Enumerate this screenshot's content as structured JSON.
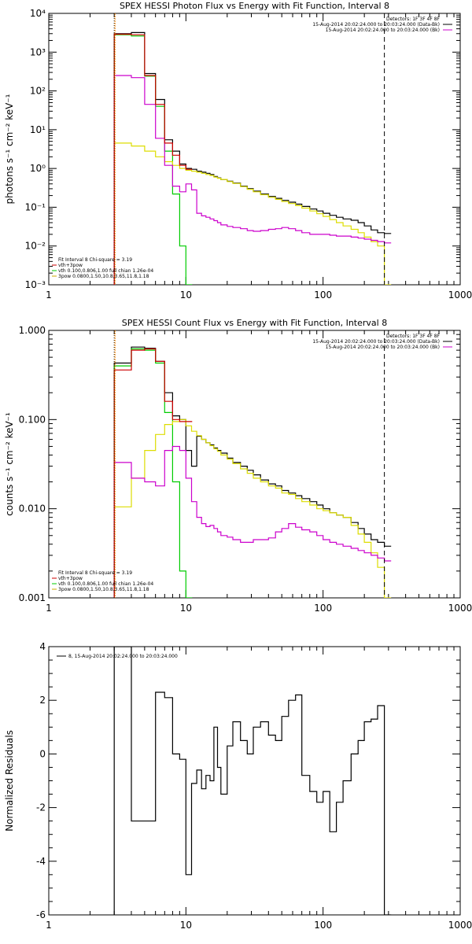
{
  "chart_data": [
    {
      "type": "line",
      "step": true,
      "title": "SPEX HESSI Photon Flux vs Energy with Fit Function, Interval 8",
      "ylabel": "photons s⁻¹ cm⁻² keV⁻¹",
      "xscale": "log",
      "yscale": "log",
      "xlim": [
        1,
        1000
      ],
      "ylim": [
        0.001,
        10000
      ],
      "xtick_labels": [
        "1",
        "10",
        "100",
        "1000"
      ],
      "ytick_labels": [
        "10⁻³",
        "10⁻²",
        "10⁻¹",
        "10⁰",
        "10¹",
        "10²",
        "10³",
        "10⁴"
      ],
      "top_right_legend": [
        {
          "text": "Detectors: 1F 3F 4F 8F",
          "color": "#000000"
        },
        {
          "text": "15-Aug-2014 20:02:24.000 to 20:03:24.000 (Data-Bk)",
          "color": "#000000"
        },
        {
          "text": "15-Aug-2014 20:02:24.000 to 20:03:24.000 (Bk)",
          "color": "#cc00cc"
        }
      ],
      "bottom_left_legend": [
        {
          "text": "Fit Interval 8   Chi-square = 3.19",
          "color": "#000000"
        },
        {
          "text": "vth+3pow",
          "color": "#cc0000"
        },
        {
          "text": "vth 0.100,0.806,1.00  full chian 1.26e-04",
          "color": "#00cc00"
        },
        {
          "text": "3pow 0.0800,1.50,10.8,3.65,11.8,1.18",
          "color": "#ccaa00"
        }
      ],
      "vlines": [
        {
          "x": 3,
          "style": "dotted",
          "color": "#000000"
        },
        {
          "x": 3,
          "style": "solid",
          "color": "#ff8800"
        },
        {
          "x": 280,
          "style": "dashed",
          "color": "#000000"
        }
      ],
      "series": [
        {
          "color": "#000000",
          "x": [
            3,
            4,
            5,
            6,
            7,
            8,
            9,
            10,
            11,
            12,
            13,
            14,
            15,
            16,
            17,
            18,
            20,
            22,
            25,
            28,
            31,
            35,
            40,
            45,
            50,
            56,
            63,
            70,
            80,
            90,
            100,
            112,
            125,
            140,
            160,
            180,
            200,
            224,
            250,
            280
          ],
          "y": [
            3000,
            3200,
            280,
            60,
            5.5,
            2.8,
            1.3,
            1.0,
            0.95,
            0.85,
            0.8,
            0.75,
            0.7,
            0.62,
            0.57,
            0.52,
            0.47,
            0.42,
            0.35,
            0.3,
            0.26,
            0.22,
            0.19,
            0.17,
            0.15,
            0.135,
            0.12,
            0.105,
            0.09,
            0.08,
            0.07,
            0.062,
            0.055,
            0.05,
            0.046,
            0.04,
            0.033,
            0.026,
            0.022,
            0.021
          ]
        },
        {
          "color": "#00cc00",
          "x": [
            3,
            4,
            5,
            6,
            7,
            8,
            9,
            10
          ],
          "y": [
            2800,
            2600,
            240,
            40,
            2.8,
            0.22,
            0.01,
            0.001
          ]
        },
        {
          "color": "#dddd00",
          "x": [
            3,
            4,
            5,
            6,
            7,
            8,
            9,
            10,
            11,
            12,
            13,
            14,
            15,
            16,
            17,
            18,
            20,
            22,
            25,
            28,
            31,
            35,
            40,
            45,
            50,
            56,
            63,
            70,
            80,
            90,
            100,
            112,
            125,
            140,
            160,
            180,
            200,
            224,
            250,
            280
          ],
          "y": [
            4.5,
            3.8,
            2.8,
            2.0,
            1.5,
            1.2,
            1.0,
            0.9,
            0.85,
            0.8,
            0.75,
            0.7,
            0.66,
            0.6,
            0.56,
            0.52,
            0.46,
            0.41,
            0.34,
            0.29,
            0.25,
            0.21,
            0.18,
            0.16,
            0.14,
            0.125,
            0.11,
            0.095,
            0.08,
            0.068,
            0.058,
            0.048,
            0.04,
            0.033,
            0.027,
            0.022,
            0.017,
            0.013,
            0.01,
            0.001
          ]
        },
        {
          "color": "#cc00cc",
          "x": [
            3,
            4,
            5,
            6,
            7,
            8,
            9,
            10,
            11,
            12,
            13,
            14,
            15,
            16,
            17,
            18,
            20,
            22,
            25,
            28,
            31,
            35,
            40,
            45,
            50,
            56,
            63,
            70,
            80,
            90,
            100,
            112,
            125,
            140,
            160,
            180,
            200,
            224,
            250,
            280
          ],
          "y": [
            250,
            220,
            45,
            6.0,
            1.2,
            0.35,
            0.25,
            0.4,
            0.28,
            0.07,
            0.06,
            0.055,
            0.05,
            0.045,
            0.04,
            0.035,
            0.032,
            0.03,
            0.028,
            0.025,
            0.024,
            0.025,
            0.027,
            0.028,
            0.03,
            0.028,
            0.025,
            0.022,
            0.02,
            0.02,
            0.02,
            0.019,
            0.018,
            0.018,
            0.017,
            0.016,
            0.015,
            0.014,
            0.013,
            0.012
          ]
        },
        {
          "color": "#cc0000",
          "x": [
            3,
            4,
            5,
            6,
            7,
            8,
            9,
            10
          ],
          "y": [
            2900,
            2800,
            250,
            45,
            4.5,
            2.2,
            1.2,
            0.95
          ]
        }
      ]
    },
    {
      "type": "line",
      "step": true,
      "title": "SPEX HESSI Count Flux vs Energy with Fit Function, Interval 8",
      "ylabel": "counts s⁻¹ cm⁻² keV⁻¹",
      "xscale": "log",
      "yscale": "log",
      "xlim": [
        1,
        1000
      ],
      "ylim": [
        0.001,
        1.0
      ],
      "xtick_labels": [
        "1",
        "10",
        "100",
        "1000"
      ],
      "ytick_labels": [
        "0.001",
        "0.010",
        "0.100",
        "1.000"
      ],
      "top_right_legend": [
        {
          "text": "Detectors: 1F 3F 4F 8F",
          "color": "#000000"
        },
        {
          "text": "15-Aug-2014 20:02:24.000 to 20:03:24.000 (Data-Bk)",
          "color": "#000000"
        },
        {
          "text": "15-Aug-2014 20:02:24.000 to 20:03:24.000 (Bk)",
          "color": "#cc00cc"
        }
      ],
      "bottom_left_legend": [
        {
          "text": "Fit Interval 8   Chi-square = 3.19",
          "color": "#000000"
        },
        {
          "text": "vth+3pow",
          "color": "#cc0000"
        },
        {
          "text": "vth 0.100,0.806,1.00  full chian 1.26e-04",
          "color": "#00cc00"
        },
        {
          "text": "3pow 0.0800,1.50,10.8,3.65,11.8,1.18",
          "color": "#ccaa00"
        }
      ],
      "vlines": [
        {
          "x": 3,
          "style": "dotted",
          "color": "#000000"
        },
        {
          "x": 3,
          "style": "solid",
          "color": "#ff8800"
        },
        {
          "x": 280,
          "style": "dashed",
          "color": "#000000"
        }
      ],
      "series": [
        {
          "color": "#000000",
          "x": [
            3,
            4,
            5,
            6,
            7,
            8,
            9,
            10,
            11,
            12,
            13,
            14,
            15,
            16,
            17,
            18,
            20,
            22,
            25,
            28,
            31,
            35,
            40,
            45,
            50,
            56,
            63,
            70,
            80,
            90,
            100,
            112,
            125,
            140,
            160,
            180,
            200,
            224,
            250,
            280
          ],
          "y": [
            0.43,
            0.65,
            0.63,
            0.45,
            0.2,
            0.11,
            0.1,
            0.045,
            0.03,
            0.065,
            0.06,
            0.055,
            0.052,
            0.048,
            0.045,
            0.042,
            0.037,
            0.033,
            0.03,
            0.027,
            0.024,
            0.021,
            0.019,
            0.018,
            0.016,
            0.015,
            0.014,
            0.013,
            0.012,
            0.011,
            0.01,
            0.009,
            0.0085,
            0.008,
            0.007,
            0.006,
            0.0052,
            0.0045,
            0.0042,
            0.0038
          ]
        },
        {
          "color": "#00cc00",
          "x": [
            3,
            4,
            5,
            6,
            7,
            8,
            9,
            10
          ],
          "y": [
            0.4,
            0.62,
            0.6,
            0.43,
            0.12,
            0.02,
            0.002,
            0.001
          ]
        },
        {
          "color": "#dddd00",
          "x": [
            3,
            4,
            5,
            6,
            7,
            8,
            9,
            10,
            11,
            12,
            13,
            14,
            15,
            16,
            17,
            18,
            20,
            22,
            25,
            28,
            31,
            35,
            40,
            45,
            50,
            56,
            63,
            70,
            80,
            90,
            100,
            112,
            125,
            140,
            160,
            180,
            200,
            224,
            250,
            280
          ],
          "y": [
            0.0105,
            0.022,
            0.045,
            0.068,
            0.088,
            0.095,
            0.1,
            0.085,
            0.074,
            0.066,
            0.06,
            0.055,
            0.051,
            0.047,
            0.044,
            0.04,
            0.036,
            0.032,
            0.028,
            0.025,
            0.022,
            0.02,
            0.018,
            0.017,
            0.015,
            0.0145,
            0.013,
            0.012,
            0.011,
            0.01,
            0.0095,
            0.009,
            0.0085,
            0.008,
            0.0065,
            0.0052,
            0.0042,
            0.0032,
            0.0022,
            0.001
          ]
        },
        {
          "color": "#cc00cc",
          "x": [
            3,
            4,
            5,
            6,
            7,
            8,
            9,
            10,
            11,
            12,
            13,
            14,
            15,
            16,
            17,
            18,
            20,
            22,
            25,
            28,
            31,
            35,
            40,
            45,
            50,
            56,
            63,
            70,
            80,
            90,
            100,
            112,
            125,
            140,
            160,
            180,
            200,
            224,
            250,
            280
          ],
          "y": [
            0.033,
            0.022,
            0.02,
            0.018,
            0.045,
            0.05,
            0.045,
            0.022,
            0.012,
            0.008,
            0.0068,
            0.0063,
            0.0065,
            0.006,
            0.0055,
            0.005,
            0.0048,
            0.0045,
            0.0042,
            0.0042,
            0.0045,
            0.0045,
            0.0047,
            0.0055,
            0.006,
            0.0068,
            0.0062,
            0.0058,
            0.0055,
            0.005,
            0.0045,
            0.0042,
            0.004,
            0.0038,
            0.0036,
            0.0034,
            0.0032,
            0.003,
            0.0028,
            0.0026
          ]
        },
        {
          "color": "#cc0000",
          "x": [
            3,
            4,
            5,
            6,
            7,
            8,
            9,
            10
          ],
          "y": [
            0.36,
            0.6,
            0.62,
            0.45,
            0.16,
            0.1,
            0.095,
            0.095
          ]
        }
      ]
    },
    {
      "type": "line",
      "step": true,
      "title": "",
      "ylabel": "Normalized Residuals",
      "xscale": "log",
      "yscale": "linear",
      "xlim": [
        1,
        1000
      ],
      "ylim": [
        -6,
        4
      ],
      "xtick_labels": [
        "1",
        "10",
        "100",
        "1000"
      ],
      "ytick_labels": [
        "-6",
        "-4",
        "-2",
        "0",
        "2",
        "4"
      ],
      "legend": [
        {
          "text": "8, 15-Aug-2014 20:02:24.000 to 20:03:24.000",
          "color": "#000000"
        }
      ],
      "series": [
        {
          "color": "#000000",
          "x": [
            3,
            4,
            5,
            6,
            7,
            8,
            9,
            10,
            11,
            12,
            13,
            14,
            15,
            16,
            17,
            18,
            20,
            22,
            25,
            28,
            31,
            35,
            40,
            45,
            50,
            56,
            63,
            70,
            80,
            90,
            100,
            112,
            125,
            140,
            160,
            180,
            200,
            224,
            250,
            280
          ],
          "y": [
            4.0,
            -2.5,
            -2.5,
            2.3,
            2.1,
            0.0,
            -0.2,
            -4.5,
            -1.1,
            -0.6,
            -1.3,
            -0.8,
            -1.0,
            1.0,
            -0.5,
            -1.5,
            0.3,
            1.2,
            0.5,
            0.0,
            1.0,
            1.2,
            0.7,
            0.5,
            1.4,
            2.0,
            2.2,
            -0.8,
            -1.4,
            -1.8,
            -1.4,
            -2.9,
            -1.8,
            -1.0,
            0.0,
            0.5,
            1.2,
            1.3,
            1.8,
            -6.0
          ]
        }
      ]
    }
  ]
}
